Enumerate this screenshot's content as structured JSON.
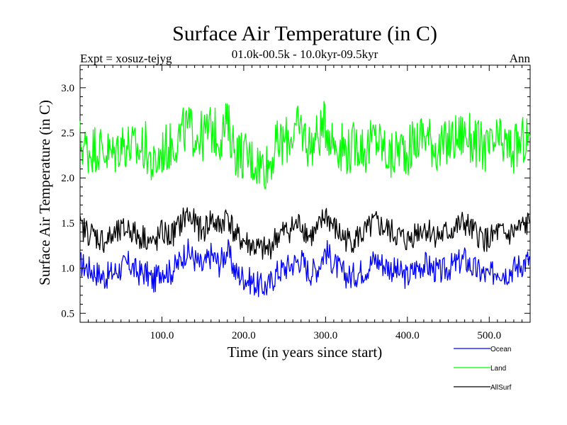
{
  "chart_data": {
    "type": "line",
    "title": "Surface Air Temperature (in C)",
    "subtitle": "01.0k-00.5k - 10.0kyr-09.5kyr",
    "left_label": "Expt = xosuz-tejyg",
    "right_label": "Ann",
    "xlabel": "Time (in years since start)",
    "ylabel": "Surface Air Temperature (in C)",
    "xlim": [
      0,
      550
    ],
    "ylim": [
      0.4,
      3.25
    ],
    "x_ticks": [
      100,
      200,
      300,
      400,
      500
    ],
    "x_tick_labels": [
      "100.0",
      "200.0",
      "300.0",
      "400.0",
      "500.0"
    ],
    "y_ticks": [
      0.5,
      1.0,
      1.5,
      2.0,
      2.5,
      3.0
    ],
    "y_tick_labels": [
      "0.5",
      "1.0",
      "1.5",
      "2.0",
      "2.5",
      "3.0"
    ],
    "legend_position": "bottom-right",
    "series": [
      {
        "name": "Ocean",
        "color": "#0000ff",
        "x": [
          0,
          10,
          20,
          30,
          40,
          50,
          60,
          70,
          80,
          90,
          100,
          110,
          120,
          130,
          140,
          150,
          160,
          170,
          180,
          190,
          200,
          210,
          220,
          230,
          240,
          250,
          260,
          270,
          280,
          290,
          300,
          310,
          320,
          330,
          340,
          350,
          360,
          370,
          380,
          390,
          400,
          410,
          420,
          430,
          440,
          450,
          460,
          470,
          480,
          490,
          500,
          510,
          520,
          530,
          540,
          550
        ],
        "values": [
          1.05,
          1.0,
          0.95,
          0.9,
          0.95,
          1.0,
          1.05,
          0.95,
          0.95,
          0.85,
          1.0,
          0.95,
          1.05,
          1.2,
          1.1,
          1.0,
          1.15,
          1.05,
          1.2,
          0.95,
          0.9,
          0.85,
          0.8,
          0.8,
          0.95,
          1.0,
          1.05,
          1.1,
          0.95,
          1.0,
          1.2,
          1.05,
          0.95,
          0.9,
          0.95,
          1.0,
          1.1,
          1.05,
          1.0,
          0.95,
          0.9,
          1.0,
          1.05,
          1.0,
          0.95,
          1.0,
          1.05,
          1.1,
          1.0,
          0.95,
          0.9,
          1.0,
          0.95,
          1.0,
          1.05,
          1.1
        ]
      },
      {
        "name": "Land",
        "color": "#00ff00",
        "x": [
          0,
          10,
          20,
          30,
          40,
          50,
          60,
          70,
          80,
          90,
          100,
          110,
          120,
          130,
          140,
          150,
          160,
          170,
          180,
          190,
          200,
          210,
          220,
          230,
          240,
          250,
          260,
          270,
          280,
          290,
          300,
          310,
          320,
          330,
          340,
          350,
          360,
          370,
          380,
          390,
          400,
          410,
          420,
          430,
          440,
          450,
          460,
          470,
          480,
          490,
          500,
          510,
          520,
          530,
          540,
          550
        ],
        "values": [
          2.4,
          2.3,
          2.35,
          2.3,
          2.25,
          2.4,
          2.35,
          2.3,
          2.35,
          2.1,
          2.3,
          2.35,
          2.45,
          2.55,
          2.5,
          2.45,
          2.55,
          2.45,
          2.6,
          2.3,
          2.25,
          2.2,
          2.15,
          2.15,
          2.35,
          2.4,
          2.5,
          2.55,
          2.35,
          2.45,
          2.6,
          2.4,
          2.35,
          2.3,
          2.4,
          2.3,
          2.45,
          2.35,
          2.2,
          2.35,
          2.3,
          2.4,
          2.5,
          2.4,
          2.3,
          2.4,
          2.45,
          2.5,
          2.4,
          2.35,
          2.3,
          2.4,
          2.35,
          2.3,
          2.4,
          2.45
        ]
      },
      {
        "name": "AllSurf",
        "color": "#000000",
        "x": [
          0,
          10,
          20,
          30,
          40,
          50,
          60,
          70,
          80,
          90,
          100,
          110,
          120,
          130,
          140,
          150,
          160,
          170,
          180,
          190,
          200,
          210,
          220,
          230,
          240,
          250,
          260,
          270,
          280,
          290,
          300,
          310,
          320,
          330,
          340,
          350,
          360,
          370,
          380,
          390,
          400,
          410,
          420,
          430,
          440,
          450,
          460,
          470,
          480,
          490,
          500,
          510,
          520,
          530,
          540,
          550
        ],
        "values": [
          1.45,
          1.4,
          1.35,
          1.3,
          1.35,
          1.4,
          1.45,
          1.35,
          1.35,
          1.25,
          1.4,
          1.35,
          1.45,
          1.6,
          1.5,
          1.4,
          1.55,
          1.45,
          1.6,
          1.35,
          1.3,
          1.25,
          1.2,
          1.2,
          1.35,
          1.4,
          1.45,
          1.5,
          1.35,
          1.4,
          1.6,
          1.45,
          1.35,
          1.3,
          1.35,
          1.4,
          1.5,
          1.45,
          1.4,
          1.35,
          1.3,
          1.4,
          1.45,
          1.4,
          1.35,
          1.4,
          1.45,
          1.5,
          1.4,
          1.35,
          1.3,
          1.4,
          1.35,
          1.4,
          1.45,
          1.5
        ]
      }
    ]
  }
}
